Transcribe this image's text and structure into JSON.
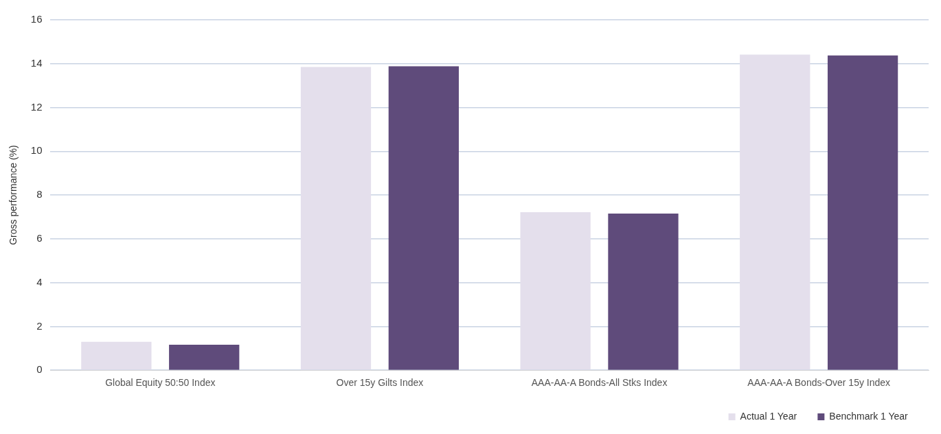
{
  "chart_data": {
    "type": "bar",
    "ylabel": "Gross performance (%)",
    "categories": [
      "Global Equity 50:50 Index",
      "Over 15y Gilts Index",
      "AAA-AA-A Bonds-All Stks Index",
      "AAA-AA-A Bonds-Over 15y Index"
    ],
    "series": [
      {
        "name": "Actual 1 Year",
        "color": "#e4dfec",
        "values": [
          1.3,
          13.85,
          7.22,
          14.42
        ]
      },
      {
        "name": "Benchmark 1 Year",
        "color": "#5f4b7b",
        "values": [
          1.17,
          13.88,
          7.16,
          14.38
        ]
      }
    ],
    "ylim": [
      0,
      16
    ],
    "yticks": [
      0,
      2,
      4,
      6,
      8,
      10,
      12,
      14,
      16
    ],
    "grid": "y",
    "legend": "bottom right"
  }
}
